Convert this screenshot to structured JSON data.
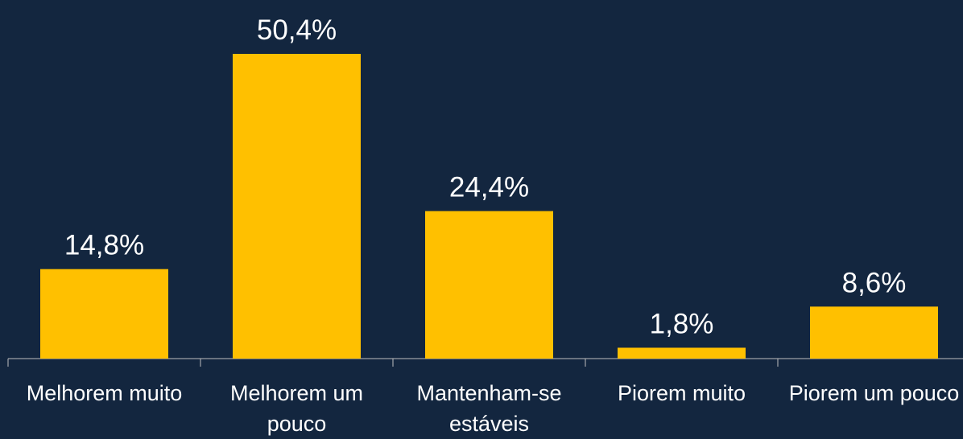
{
  "chart_data": {
    "type": "bar",
    "categories": [
      "Melhorem muito",
      "Melhorem um pouco",
      "Mantenham-se estáveis",
      "Piorem muito",
      "Piorem um pouco"
    ],
    "values": [
      14.8,
      50.4,
      24.4,
      1.8,
      8.6
    ],
    "value_labels": [
      "14,8%",
      "50,4%",
      "24,4%",
      "1,8%",
      "8,6%"
    ],
    "color": "#ffc000"
  }
}
